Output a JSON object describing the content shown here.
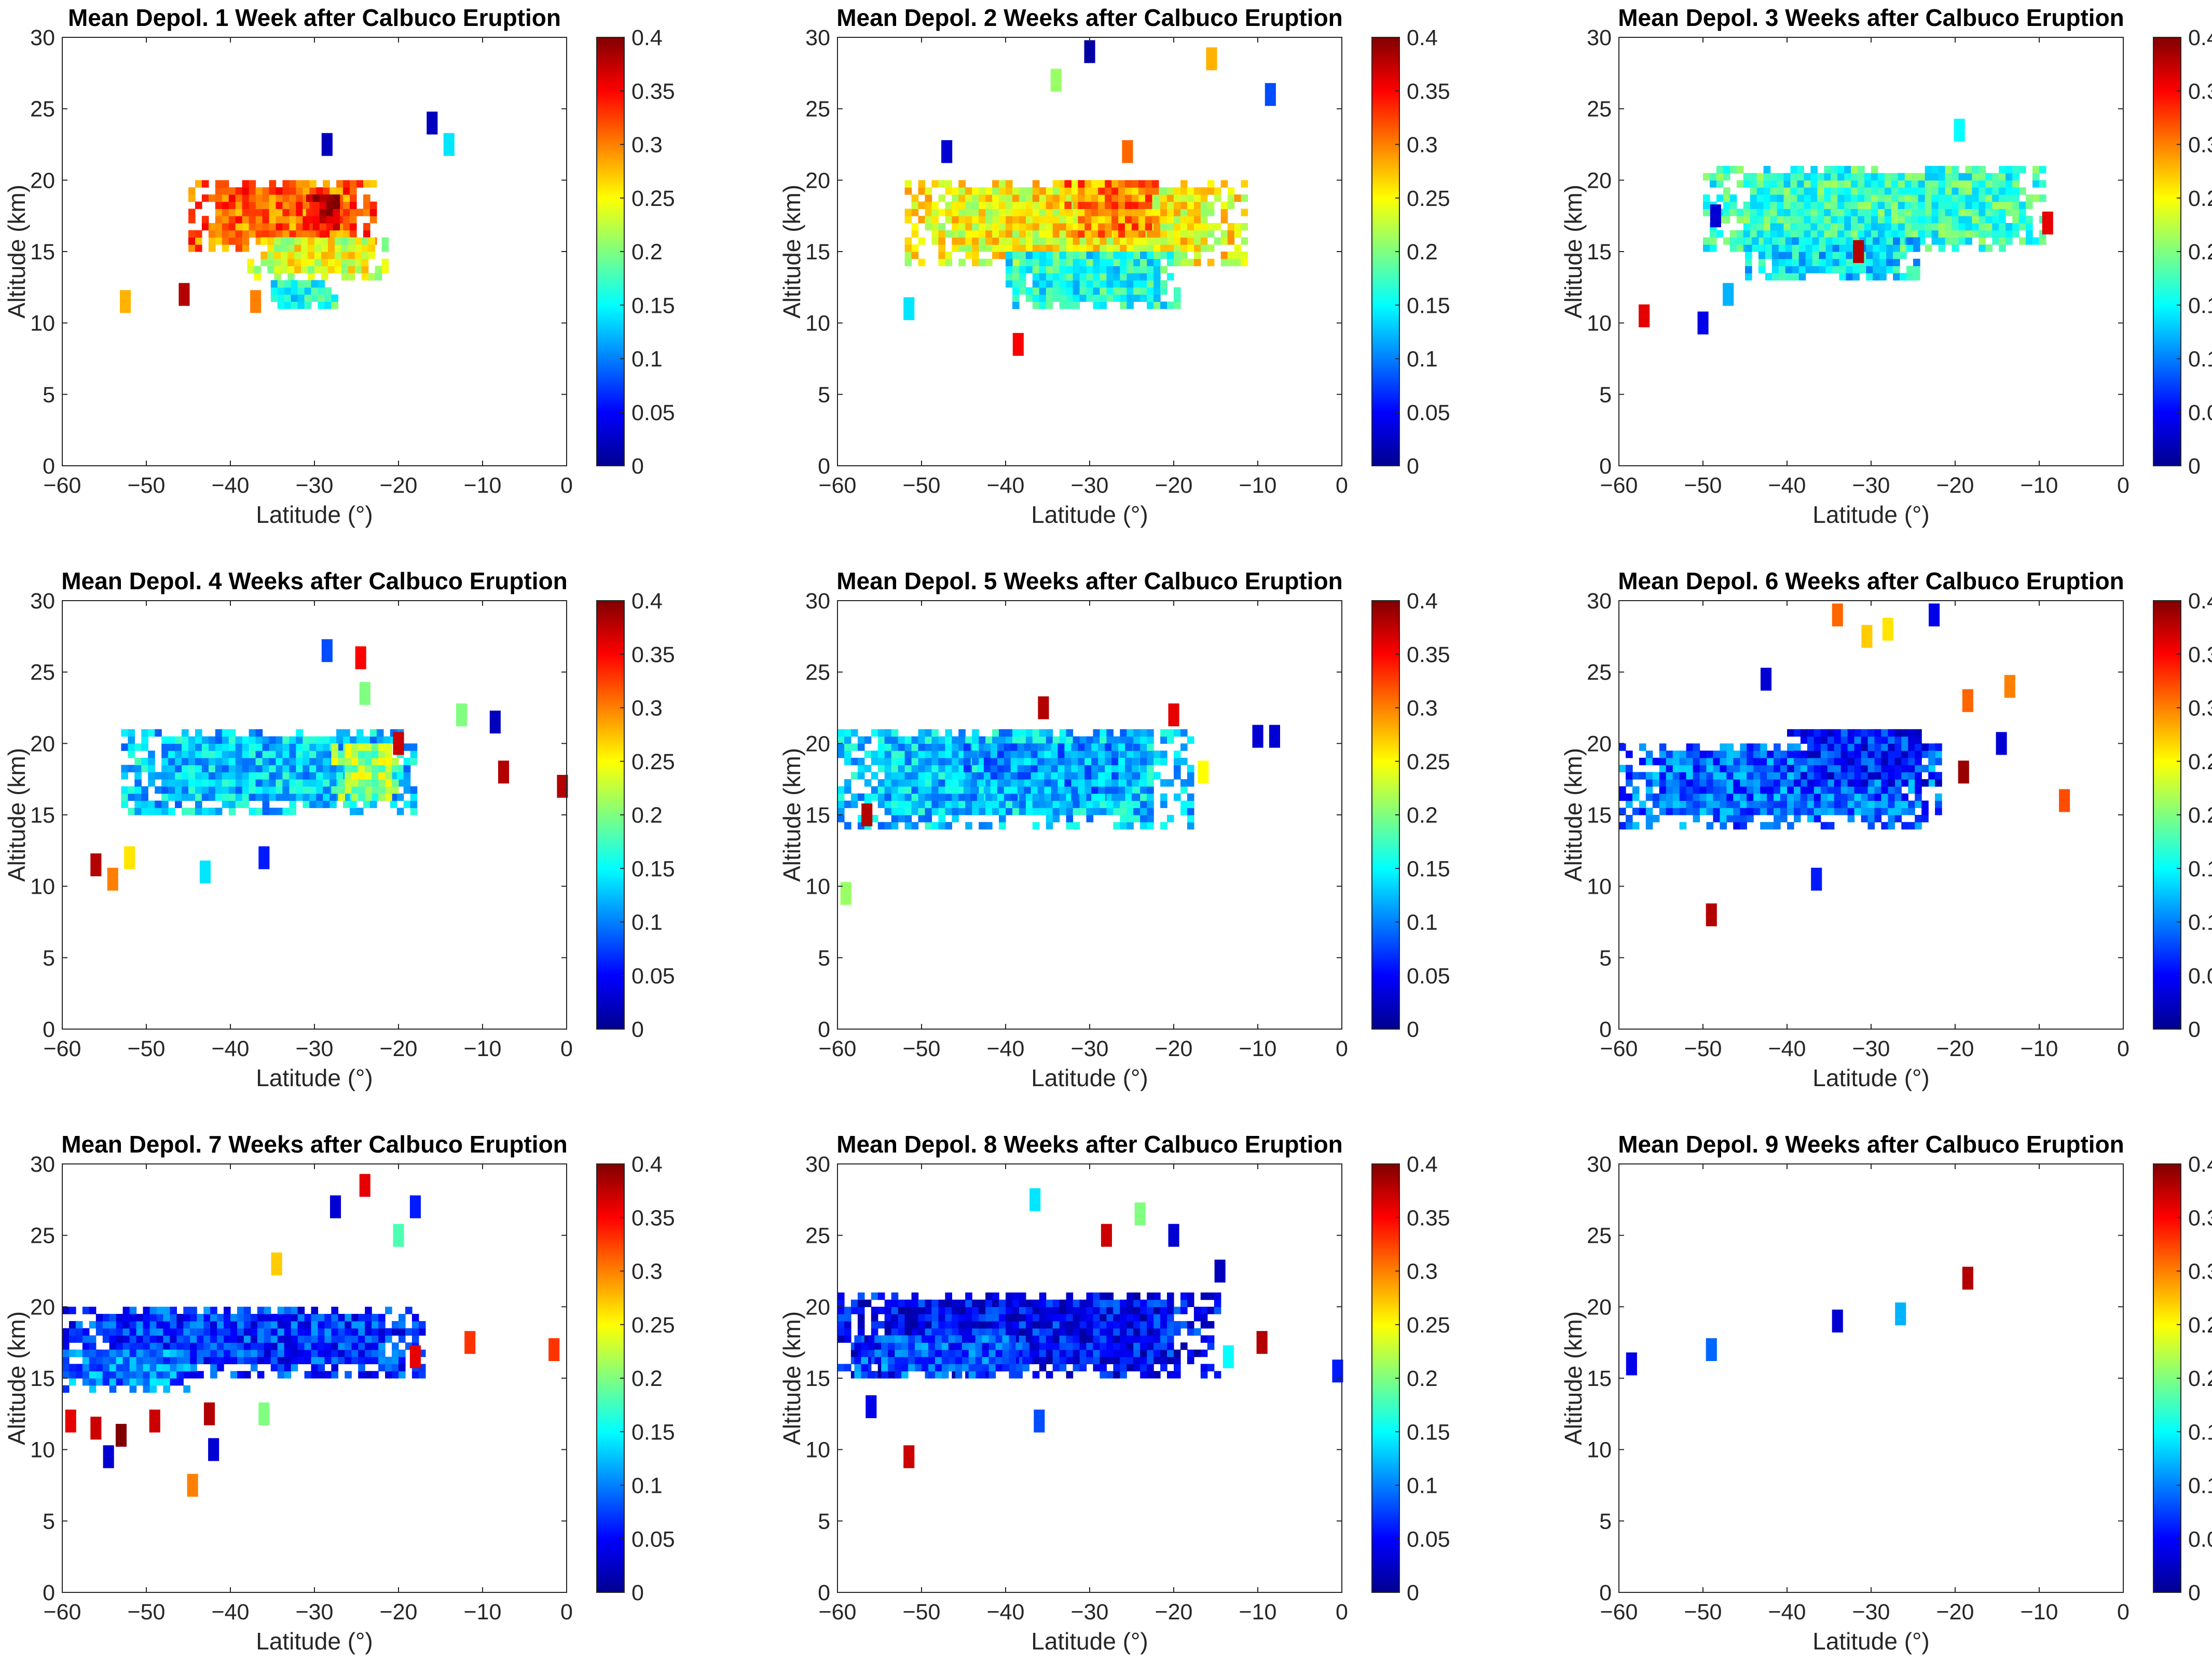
{
  "chart_data": {
    "type": "heatmap",
    "figure_description": "3x3 grid of latitude-altitude heatmaps of mean depolarization ratio",
    "x_label": "Latitude (°)",
    "y_label": "Altitude (km)",
    "x_ticks": [
      "−60",
      "−50",
      "−40",
      "−30",
      "−20",
      "−10",
      "0"
    ],
    "y_ticks": [
      "0",
      "5",
      "10",
      "15",
      "20",
      "25",
      "30"
    ],
    "xlim": [
      -60,
      0
    ],
    "ylim": [
      0,
      30
    ],
    "colorbar": {
      "min": 0,
      "max": 0.4,
      "ticks": [
        "0",
        "0.05",
        "0.1",
        "0.15",
        "0.2",
        "0.25",
        "0.3",
        "0.35",
        "0.4"
      ],
      "colormap": "jet"
    },
    "panels": [
      {
        "title": "Mean Depol. 1 Week after Calbuco Eruption",
        "regions": [
          {
            "lat": [
              -45,
              -23
            ],
            "alt": [
              15,
              20
            ],
            "value": 0.31
          },
          {
            "lat": [
              -38,
              -22
            ],
            "alt": [
              13,
              16
            ],
            "value": 0.24
          },
          {
            "lat": [
              -36,
              -28
            ],
            "alt": [
              11,
              13
            ],
            "value": 0.16
          },
          {
            "lat": [
              -31,
              -27
            ],
            "alt": [
              16,
              19
            ],
            "value": 0.36
          }
        ],
        "points": [
          {
            "lat": -52.5,
            "alt": 11.5,
            "value": 0.28
          },
          {
            "lat": -45.5,
            "alt": 12.0,
            "value": 0.38
          },
          {
            "lat": -28.5,
            "alt": 22.5,
            "value": 0.02
          },
          {
            "lat": -16.0,
            "alt": 24.0,
            "value": 0.02
          },
          {
            "lat": -14.0,
            "alt": 22.5,
            "value": 0.14
          },
          {
            "lat": -37.0,
            "alt": 11.5,
            "value": 0.3
          }
        ]
      },
      {
        "title": "Mean Depol. 2 Weeks after Calbuco Eruption",
        "regions": [
          {
            "lat": [
              -52,
              -12
            ],
            "alt": [
              14,
              20
            ],
            "value": 0.25
          },
          {
            "lat": [
              -40,
              -20
            ],
            "alt": [
              11,
              15
            ],
            "value": 0.16
          },
          {
            "lat": [
              -33,
              -22
            ],
            "alt": [
              16,
              20
            ],
            "value": 0.3
          }
        ],
        "points": [
          {
            "lat": -51.5,
            "alt": 11.0,
            "value": 0.14
          },
          {
            "lat": -47.0,
            "alt": 22.0,
            "value": 0.03
          },
          {
            "lat": -38.5,
            "alt": 8.5,
            "value": 0.35
          },
          {
            "lat": -34.0,
            "alt": 27.0,
            "value": 0.21
          },
          {
            "lat": -30.0,
            "alt": 29.0,
            "value": 0.01
          },
          {
            "lat": -25.5,
            "alt": 22.0,
            "value": 0.31
          },
          {
            "lat": -15.5,
            "alt": 28.5,
            "value": 0.28
          },
          {
            "lat": -8.5,
            "alt": 26.0,
            "value": 0.08
          }
        ]
      },
      {
        "title": "Mean Depol. 3 Weeks after Calbuco Eruption",
        "regions": [
          {
            "lat": [
              -50,
              -10
            ],
            "alt": [
              15,
              21
            ],
            "value": 0.17
          },
          {
            "lat": [
              -45,
              -25
            ],
            "alt": [
              13,
              16
            ],
            "value": 0.14
          }
        ],
        "points": [
          {
            "lat": -57.0,
            "alt": 10.5,
            "value": 0.36
          },
          {
            "lat": -50.0,
            "alt": 10.0,
            "value": 0.04
          },
          {
            "lat": -48.5,
            "alt": 17.5,
            "value": 0.03
          },
          {
            "lat": -47.0,
            "alt": 12.0,
            "value": 0.12
          },
          {
            "lat": -31.5,
            "alt": 15.0,
            "value": 0.38
          },
          {
            "lat": -19.5,
            "alt": 23.5,
            "value": 0.15
          },
          {
            "lat": -9.0,
            "alt": 17.0,
            "value": 0.36
          }
        ]
      },
      {
        "title": "Mean Depol. 4 Weeks after Calbuco Eruption",
        "regions": [
          {
            "lat": [
              -53,
              -18
            ],
            "alt": [
              15,
              21
            ],
            "value": 0.13
          },
          {
            "lat": [
              -28,
              -20
            ],
            "alt": [
              16,
              20
            ],
            "value": 0.21
          }
        ],
        "points": [
          {
            "lat": -56.0,
            "alt": 11.5,
            "value": 0.38
          },
          {
            "lat": -54.0,
            "alt": 10.5,
            "value": 0.3
          },
          {
            "lat": -52.0,
            "alt": 12.0,
            "value": 0.26
          },
          {
            "lat": -43.0,
            "alt": 11.0,
            "value": 0.14
          },
          {
            "lat": -36.0,
            "alt": 12.0,
            "value": 0.06
          },
          {
            "lat": -28.5,
            "alt": 26.5,
            "value": 0.08
          },
          {
            "lat": -24.5,
            "alt": 26.0,
            "value": 0.35
          },
          {
            "lat": -24.0,
            "alt": 23.5,
            "value": 0.2
          },
          {
            "lat": -20.0,
            "alt": 20.0,
            "value": 0.37
          },
          {
            "lat": -12.5,
            "alt": 22.0,
            "value": 0.2
          },
          {
            "lat": -8.5,
            "alt": 21.5,
            "value": 0.02
          },
          {
            "lat": -7.5,
            "alt": 18.0,
            "value": 0.38
          },
          {
            "lat": -0.5,
            "alt": 17.0,
            "value": 0.38
          }
        ]
      },
      {
        "title": "Mean Depol. 5 Weeks after Calbuco Eruption",
        "regions": [
          {
            "lat": [
              -60,
              -18
            ],
            "alt": [
              14,
              21
            ],
            "value": 0.13
          },
          {
            "lat": [
              -45,
              -25
            ],
            "alt": [
              16,
              20
            ],
            "value": 0.11
          }
        ],
        "points": [
          {
            "lat": -59.0,
            "alt": 9.5,
            "value": 0.21
          },
          {
            "lat": -56.5,
            "alt": 15.0,
            "value": 0.38
          },
          {
            "lat": -35.5,
            "alt": 22.5,
            "value": 0.38
          },
          {
            "lat": -20.0,
            "alt": 22.0,
            "value": 0.36
          },
          {
            "lat": -16.5,
            "alt": 18.0,
            "value": 0.25
          },
          {
            "lat": -10.0,
            "alt": 20.5,
            "value": 0.03
          },
          {
            "lat": -8.0,
            "alt": 20.5,
            "value": 0.03
          }
        ]
      },
      {
        "title": "Mean Depol. 6 Weeks after Calbuco Eruption",
        "regions": [
          {
            "lat": [
              -60,
              -22
            ],
            "alt": [
              14,
              20
            ],
            "value": 0.09
          },
          {
            "lat": [
              -40,
              -22
            ],
            "alt": [
              17,
              21
            ],
            "value": 0.06
          }
        ],
        "points": [
          {
            "lat": -49.0,
            "alt": 8.0,
            "value": 0.38
          },
          {
            "lat": -42.5,
            "alt": 24.5,
            "value": 0.03
          },
          {
            "lat": -36.5,
            "alt": 10.5,
            "value": 0.06
          },
          {
            "lat": -34.0,
            "alt": 29.0,
            "value": 0.31
          },
          {
            "lat": -30.5,
            "alt": 27.5,
            "value": 0.27
          },
          {
            "lat": -28.0,
            "alt": 28.0,
            "value": 0.26
          },
          {
            "lat": -22.5,
            "alt": 29.0,
            "value": 0.04
          },
          {
            "lat": -19.0,
            "alt": 18.0,
            "value": 0.39
          },
          {
            "lat": -18.5,
            "alt": 23.0,
            "value": 0.31
          },
          {
            "lat": -14.5,
            "alt": 20.0,
            "value": 0.03
          },
          {
            "lat": -13.5,
            "alt": 24.0,
            "value": 0.3
          },
          {
            "lat": -7.0,
            "alt": 16.0,
            "value": 0.32
          }
        ]
      },
      {
        "title": "Mean Depol. 7 Weeks after Calbuco Eruption",
        "regions": [
          {
            "lat": [
              -60,
              -17
            ],
            "alt": [
              15,
              20
            ],
            "value": 0.07
          },
          {
            "lat": [
              -60,
              -45
            ],
            "alt": [
              14,
              17
            ],
            "value": 0.1
          }
        ],
        "points": [
          {
            "lat": -59.0,
            "alt": 12.0,
            "value": 0.36
          },
          {
            "lat": -56.0,
            "alt": 11.5,
            "value": 0.37
          },
          {
            "lat": -54.5,
            "alt": 9.5,
            "value": 0.03
          },
          {
            "lat": -53.0,
            "alt": 11.0,
            "value": 0.4
          },
          {
            "lat": -49.0,
            "alt": 12.0,
            "value": 0.37
          },
          {
            "lat": -42.5,
            "alt": 12.5,
            "value": 0.38
          },
          {
            "lat": -42.0,
            "alt": 10.0,
            "value": 0.03
          },
          {
            "lat": -44.5,
            "alt": 7.5,
            "value": 0.3
          },
          {
            "lat": -36.0,
            "alt": 12.5,
            "value": 0.2
          },
          {
            "lat": -34.5,
            "alt": 23.0,
            "value": 0.27
          },
          {
            "lat": -27.5,
            "alt": 27.0,
            "value": 0.03
          },
          {
            "lat": -24.0,
            "alt": 28.5,
            "value": 0.36
          },
          {
            "lat": -20.0,
            "alt": 25.0,
            "value": 0.18
          },
          {
            "lat": -18.0,
            "alt": 27.0,
            "value": 0.06
          },
          {
            "lat": -18.0,
            "alt": 16.5,
            "value": 0.36
          },
          {
            "lat": -11.5,
            "alt": 17.5,
            "value": 0.33
          },
          {
            "lat": -1.5,
            "alt": 17.0,
            "value": 0.33
          }
        ]
      },
      {
        "title": "Mean Depol. 8 Weeks after Calbuco Eruption",
        "regions": [
          {
            "lat": [
              -60,
              -15
            ],
            "alt": [
              15,
              21
            ],
            "value": 0.05
          },
          {
            "lat": [
              -58,
              -38
            ],
            "alt": [
              15,
              18
            ],
            "value": 0.08
          }
        ],
        "points": [
          {
            "lat": -56.0,
            "alt": 13.0,
            "value": 0.04
          },
          {
            "lat": -51.5,
            "alt": 9.5,
            "value": 0.37
          },
          {
            "lat": -36.5,
            "alt": 27.5,
            "value": 0.14
          },
          {
            "lat": -36.0,
            "alt": 12.0,
            "value": 0.08
          },
          {
            "lat": -28.0,
            "alt": 25.0,
            "value": 0.37
          },
          {
            "lat": -24.0,
            "alt": 26.5,
            "value": 0.2
          },
          {
            "lat": -20.0,
            "alt": 25.0,
            "value": 0.03
          },
          {
            "lat": -14.5,
            "alt": 22.5,
            "value": 0.02
          },
          {
            "lat": -13.5,
            "alt": 16.5,
            "value": 0.15
          },
          {
            "lat": -9.5,
            "alt": 17.5,
            "value": 0.38
          },
          {
            "lat": -0.5,
            "alt": 15.5,
            "value": 0.06
          }
        ]
      },
      {
        "title": "Mean Depol. 9 Weeks after Calbuco Eruption",
        "regions": [],
        "points": [
          {
            "lat": -58.5,
            "alt": 16.0,
            "value": 0.04
          },
          {
            "lat": -49.0,
            "alt": 17.0,
            "value": 0.09
          },
          {
            "lat": -34.0,
            "alt": 19.0,
            "value": 0.03
          },
          {
            "lat": -26.5,
            "alt": 19.5,
            "value": 0.12
          },
          {
            "lat": -18.5,
            "alt": 22.0,
            "value": 0.38
          }
        ]
      }
    ]
  }
}
